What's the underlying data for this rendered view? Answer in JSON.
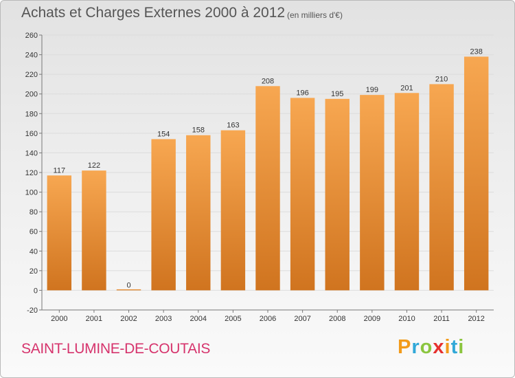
{
  "title": "Achats et Charges Externes 2000 à 2012",
  "unit": "(en milliers d'€)",
  "place": "SAINT-LUMINE-DE-COUTAIS",
  "logo": {
    "letters": [
      "P",
      "r",
      "o",
      "x",
      "i",
      "t",
      "i"
    ]
  },
  "colors": {
    "bar_light": "#f7a751",
    "bar_dark": "#d0741f",
    "place": "#d6336c",
    "grid": "#dcdcdc"
  },
  "chart_data": {
    "type": "bar",
    "categories": [
      "2000",
      "2001",
      "2002",
      "2003",
      "2004",
      "2005",
      "2006",
      "2007",
      "2008",
      "2009",
      "2010",
      "2011",
      "2012"
    ],
    "values": [
      117,
      122,
      0,
      154,
      158,
      163,
      208,
      196,
      195,
      199,
      201,
      210,
      238
    ],
    "value_labels": [
      "117",
      "122",
      "0",
      "154",
      "158",
      "163",
      "208",
      "196",
      "195",
      "199",
      "201",
      "210",
      "238"
    ],
    "ylim": [
      -20,
      260
    ],
    "yticks": [
      -20,
      0,
      20,
      40,
      60,
      80,
      100,
      120,
      140,
      160,
      180,
      200,
      220,
      240,
      260
    ],
    "ytick_labels": [
      "-20",
      "0",
      "20",
      "40",
      "60",
      "80",
      "100",
      "120",
      "140",
      "160",
      "180",
      "200",
      "220",
      "240",
      "260"
    ],
    "grid": true
  }
}
